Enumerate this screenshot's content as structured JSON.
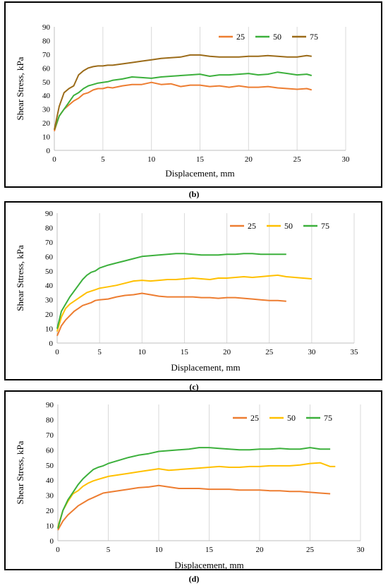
{
  "chart_data": [
    {
      "type": "line",
      "panel": "b",
      "caption": "(b)",
      "xlabel": "Displacement, mm",
      "ylabel": "Shear Stress, kPa",
      "xlim": [
        0,
        30
      ],
      "ylim": [
        0,
        90
      ],
      "xticks": [
        "0",
        "5",
        "10",
        "15",
        "20",
        "25",
        "30"
      ],
      "yticks": [
        "0",
        "10",
        "20",
        "30",
        "40",
        "50",
        "60",
        "70",
        "80",
        "90"
      ],
      "grid": "vertical",
      "legend": "top-right",
      "series": [
        {
          "name": "25",
          "color": "#ed7d31",
          "x": [
            0,
            0.5,
            1,
            1.5,
            2,
            2.5,
            3,
            3.5,
            4,
            4.5,
            5,
            5.5,
            6,
            7,
            8,
            9,
            10,
            11,
            12,
            13,
            14,
            15,
            16,
            17,
            18,
            19,
            20,
            21,
            22,
            23,
            24,
            25,
            26,
            26.5
          ],
          "y": [
            14,
            25,
            30,
            33,
            36,
            38,
            41,
            42,
            44,
            45,
            45,
            46,
            45.5,
            47,
            48,
            48,
            49.5,
            48,
            48.5,
            46.5,
            47.5,
            47.5,
            46.5,
            47,
            46,
            47,
            46,
            46,
            46.5,
            45.5,
            45,
            44.5,
            45,
            44
          ]
        },
        {
          "name": "50",
          "color": "#3cb03c",
          "x": [
            0,
            0.5,
            1,
            1.5,
            2,
            2.5,
            3,
            3.5,
            4,
            4.5,
            5,
            5.5,
            6,
            7,
            8,
            9,
            10,
            11,
            12,
            13,
            14,
            15,
            16,
            17,
            18,
            19,
            20,
            21,
            22,
            23,
            24,
            25,
            26,
            26.5
          ],
          "y": [
            15,
            25,
            30,
            35,
            40,
            42,
            45,
            47,
            48,
            49,
            49.5,
            50,
            51,
            52,
            53.5,
            53,
            52.5,
            53.5,
            54,
            54.5,
            55,
            55.5,
            54,
            55,
            55,
            55.5,
            56,
            55,
            55.5,
            57,
            56,
            55,
            55.5,
            54.5
          ]
        },
        {
          "name": "75",
          "color": "#9b6b19",
          "x": [
            0,
            0.5,
            1,
            1.5,
            2,
            2.5,
            3,
            3.5,
            4,
            4.5,
            5,
            5.5,
            6,
            7,
            8,
            9,
            10,
            11,
            12,
            13,
            14,
            15,
            16,
            17,
            18,
            19,
            20,
            21,
            22,
            23,
            24,
            25,
            26,
            26.5
          ],
          "y": [
            15,
            32,
            42,
            45,
            47,
            55,
            58,
            60,
            61,
            61.5,
            61.5,
            62,
            62,
            63,
            64,
            65,
            66,
            67,
            67.5,
            68,
            69.5,
            69.5,
            68.5,
            68,
            68,
            68,
            68.5,
            68.5,
            69,
            68.5,
            68,
            68,
            69,
            68.5
          ]
        }
      ]
    },
    {
      "type": "line",
      "panel": "c",
      "caption": "(c)",
      "xlabel": "Displacement, mm",
      "ylabel": "Shear Sttress, kPa",
      "xlim": [
        0,
        35
      ],
      "ylim": [
        0,
        90
      ],
      "xticks": [
        "0",
        "5",
        "10",
        "15",
        "20",
        "25",
        "30",
        "35"
      ],
      "yticks": [
        "0",
        "10",
        "20",
        "30",
        "40",
        "50",
        "60",
        "70",
        "80",
        "90"
      ],
      "grid": "vertical",
      "legend": "top-right",
      "series": [
        {
          "name": "25",
          "color": "#ed7d31",
          "x": [
            0,
            0.5,
            1,
            1.5,
            2,
            2.5,
            3,
            3.5,
            4,
            4.5,
            5,
            6,
            7,
            8,
            9,
            10,
            11,
            12,
            13,
            14,
            15,
            16,
            17,
            18,
            19,
            20,
            21,
            22,
            23,
            24,
            25,
            26,
            27
          ],
          "y": [
            5,
            12,
            16,
            19,
            22,
            24,
            26,
            27,
            28,
            29.5,
            30,
            30.5,
            32,
            33,
            33.5,
            34.5,
            33.5,
            32.5,
            32,
            32,
            32,
            32,
            31.5,
            31.5,
            31,
            31.5,
            31.5,
            31,
            30.5,
            30,
            29.5,
            29.5,
            29
          ]
        },
        {
          "name": "50",
          "color": "#ffc000",
          "x": [
            0,
            0.5,
            1,
            1.5,
            2,
            2.5,
            3,
            3.5,
            4,
            4.5,
            5,
            6,
            7,
            8,
            9,
            10,
            11,
            12,
            13,
            14,
            15,
            16,
            17,
            18,
            19,
            20,
            21,
            22,
            23,
            24,
            25,
            26,
            27,
            28,
            29,
            30
          ],
          "y": [
            8,
            18,
            24,
            27,
            29,
            31,
            33,
            35,
            36,
            37,
            38,
            39,
            40,
            41.5,
            43,
            43.5,
            43,
            43.5,
            44,
            44,
            44.5,
            45,
            44.5,
            44,
            45,
            45,
            45.5,
            46,
            45.5,
            46,
            46.5,
            47,
            46,
            45.5,
            45,
            44.5
          ]
        },
        {
          "name": "75",
          "color": "#3cb03c",
          "x": [
            0,
            0.5,
            1,
            1.5,
            2,
            2.5,
            3,
            3.5,
            4,
            4.5,
            5,
            6,
            7,
            8,
            9,
            10,
            11,
            12,
            13,
            14,
            15,
            16,
            17,
            18,
            19,
            20,
            21,
            22,
            23,
            24,
            25,
            26,
            27
          ],
          "y": [
            10,
            22,
            27,
            32,
            36,
            40,
            44,
            47,
            49,
            50,
            52,
            54,
            55.5,
            57,
            58.5,
            60,
            60.5,
            61,
            61.5,
            62,
            62,
            61.5,
            61,
            61,
            61,
            61.5,
            61.5,
            62,
            62,
            61.5,
            61.5,
            61.5,
            61.5
          ]
        }
      ]
    },
    {
      "type": "line",
      "panel": "d",
      "caption": "(d)",
      "xlabel": "Displacement, mm",
      "ylabel": "Shear Stress, kPa",
      "xlim": [
        0,
        30
      ],
      "ylim": [
        0,
        90
      ],
      "xticks": [
        "0",
        "5",
        "10",
        "15",
        "20",
        "25",
        "30"
      ],
      "yticks": [
        "0",
        "10",
        "20",
        "30",
        "40",
        "50",
        "60",
        "70",
        "80",
        "90"
      ],
      "grid": "vertical",
      "legend": "top-right",
      "series": [
        {
          "name": "25",
          "color": "#ed7d31",
          "x": [
            0,
            0.5,
            1,
            1.5,
            2,
            2.5,
            3,
            3.5,
            4,
            4.5,
            5,
            6,
            7,
            8,
            9,
            10,
            11,
            12,
            13,
            14,
            15,
            16,
            17,
            18,
            19,
            20,
            21,
            22,
            23,
            24,
            25,
            26,
            27
          ],
          "y": [
            7,
            13,
            17,
            20,
            23,
            25,
            27,
            28.5,
            30,
            31.5,
            32,
            33,
            34,
            35,
            35.5,
            36.5,
            35.5,
            34.5,
            34.5,
            34.5,
            34,
            34,
            34,
            33.5,
            33.5,
            33.5,
            33,
            33,
            32.5,
            32.5,
            32,
            31.5,
            31
          ]
        },
        {
          "name": "50",
          "color": "#ffc000",
          "x": [
            0,
            0.5,
            1,
            1.5,
            2,
            2.5,
            3,
            3.5,
            4,
            4.5,
            5,
            6,
            7,
            8,
            9,
            10,
            11,
            12,
            13,
            14,
            15,
            16,
            17,
            18,
            19,
            20,
            21,
            22,
            23,
            24,
            25,
            26,
            27,
            27.5
          ],
          "y": [
            9,
            20,
            26,
            31,
            33,
            36,
            38,
            39.5,
            40.5,
            41.5,
            42.5,
            43.5,
            44.5,
            45.5,
            46.5,
            47.5,
            46.5,
            47,
            47.5,
            48,
            48.5,
            49,
            48.5,
            48.5,
            49,
            49,
            49.5,
            49.5,
            49.5,
            50,
            51,
            51.5,
            49,
            49
          ]
        },
        {
          "name": "75",
          "color": "#3cb03c",
          "x": [
            0,
            0.5,
            1,
            1.5,
            2,
            2.5,
            3,
            3.5,
            4,
            4.5,
            5,
            6,
            7,
            8,
            9,
            10,
            11,
            12,
            13,
            14,
            15,
            16,
            17,
            18,
            19,
            20,
            21,
            22,
            23,
            24,
            25,
            26,
            27
          ],
          "y": [
            8,
            20,
            27,
            32,
            37,
            41,
            44,
            47,
            48.5,
            49.5,
            51,
            53,
            55,
            56.5,
            57.5,
            59,
            59.5,
            60,
            60.5,
            61.5,
            61.5,
            61,
            60.5,
            60,
            60,
            60.5,
            60.5,
            61,
            60.5,
            60.5,
            61.5,
            60.5,
            60.5
          ]
        }
      ]
    }
  ]
}
